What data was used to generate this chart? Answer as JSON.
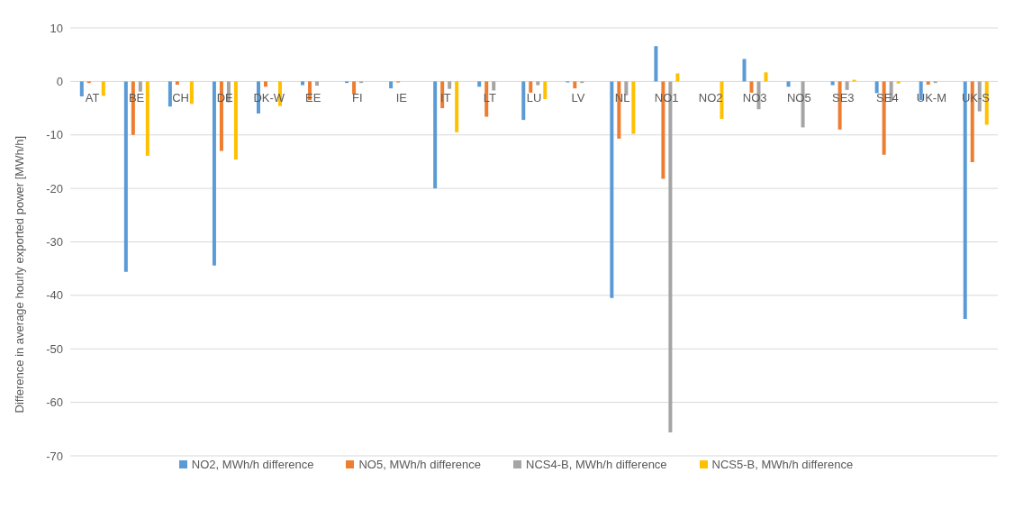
{
  "chart_data": {
    "type": "bar",
    "ylabel": "Difference in average hourly exported power [MWh/h]",
    "categories": [
      "AT",
      "BE",
      "CH",
      "DE",
      "DK-W",
      "EE",
      "FI",
      "IE",
      "IT",
      "LT",
      "LU",
      "LV",
      "NL",
      "NO1",
      "NO2",
      "NO3",
      "NO5",
      "SE3",
      "SE4",
      "UK-M",
      "UK-S"
    ],
    "series": [
      {
        "name": "NO2, MWh/h difference",
        "color": "#5b9bd5",
        "values": [
          -2.8,
          -35.6,
          -4.7,
          -34.4,
          -6,
          -0.7,
          -0.3,
          -1.3,
          -20,
          -1,
          -7.2,
          -0.2,
          -40.5,
          6.6,
          0,
          4.2,
          -1,
          -0.7,
          -2.2,
          -3.5,
          -44.4
        ]
      },
      {
        "name": "NO5, MWh/h difference",
        "color": "#ed7d31",
        "values": [
          -0.3,
          -10,
          -0.6,
          -13,
          -1,
          -3.5,
          -2.4,
          -0.2,
          -5,
          -6.6,
          -2.1,
          -1.3,
          -10.7,
          -18.2,
          0,
          -2.1,
          0,
          -9,
          -13.7,
          -0.6,
          -15.1
        ]
      },
      {
        "name": "NCS4-B, MWh/h difference",
        "color": "#a5a5a5",
        "values": [
          0,
          -1.9,
          null,
          -3.9,
          0,
          -0.8,
          -0.3,
          0,
          -1.4,
          -1.7,
          -0.7,
          -0.3,
          -2.6,
          -65.6,
          0,
          -5.2,
          -8.6,
          -1.6,
          -3.7,
          -0.3,
          -5.6
        ]
      },
      {
        "name": "NCS5-B, MWh/h difference",
        "color": "#ffc000",
        "values": [
          -2.7,
          -13.9,
          -4.2,
          -14.6,
          -4.6,
          0,
          0,
          0,
          -9.5,
          0,
          -3.3,
          0,
          -9.8,
          1.5,
          -7,
          1.7,
          0,
          0.3,
          -0.4,
          0,
          -8.1
        ]
      }
    ],
    "ylim": [
      -70,
      10
    ],
    "yticks": [
      -70,
      -60,
      -50,
      -40,
      -30,
      -20,
      -10,
      0,
      10
    ],
    "grid": "y",
    "legend": "bottom"
  }
}
